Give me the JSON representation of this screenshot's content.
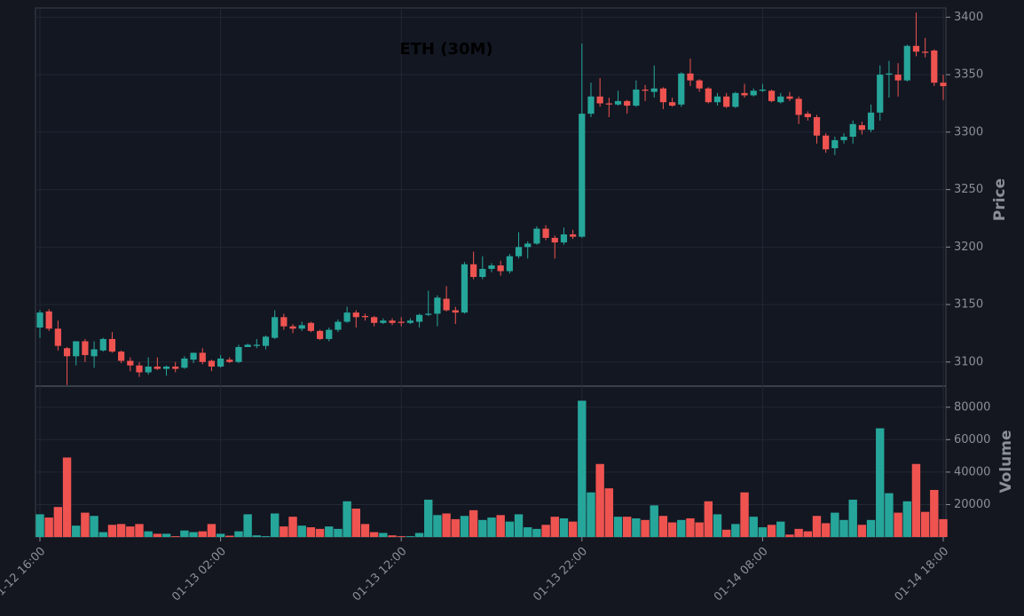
{
  "chart_data": {
    "type": "candlestick",
    "title": "ETH (30M)",
    "ylabel": "Price",
    "x": [
      "01-12 16:00",
      "01-12 16:30",
      "01-12 17:00",
      "01-12 17:30",
      "01-12 18:00",
      "01-12 18:30",
      "01-12 19:00",
      "01-12 19:30",
      "01-12 20:00",
      "01-12 20:30",
      "01-12 21:00",
      "01-12 21:30",
      "01-12 22:00",
      "01-12 22:30",
      "01-12 23:00",
      "01-12 23:30",
      "01-13 00:00",
      "01-13 00:30",
      "01-13 01:00",
      "01-13 01:30",
      "01-13 02:00",
      "01-13 02:30",
      "01-13 03:00",
      "01-13 03:30",
      "01-13 04:00",
      "01-13 04:30",
      "01-13 05:00",
      "01-13 05:30",
      "01-13 06:00",
      "01-13 06:30",
      "01-13 07:00",
      "01-13 07:30",
      "01-13 08:00",
      "01-13 08:30",
      "01-13 09:00",
      "01-13 09:30",
      "01-13 10:00",
      "01-13 10:30",
      "01-13 11:00",
      "01-13 11:30",
      "01-13 12:00",
      "01-13 12:30",
      "01-13 13:00",
      "01-13 13:30",
      "01-13 14:00",
      "01-13 14:30",
      "01-13 15:00",
      "01-13 15:30",
      "01-13 16:00",
      "01-13 16:30",
      "01-13 17:00",
      "01-13 17:30",
      "01-13 18:00",
      "01-13 18:30",
      "01-13 19:00",
      "01-13 19:30",
      "01-13 20:00",
      "01-13 20:30",
      "01-13 21:00",
      "01-13 21:30",
      "01-13 22:00",
      "01-13 22:30",
      "01-13 23:00",
      "01-13 23:30",
      "01-14 00:00",
      "01-14 00:30",
      "01-14 01:00",
      "01-14 01:30",
      "01-14 02:00",
      "01-14 02:30",
      "01-14 03:00",
      "01-14 03:30",
      "01-14 04:00",
      "01-14 04:30",
      "01-14 05:00",
      "01-14 05:30",
      "01-14 06:00",
      "01-14 06:30",
      "01-14 07:00",
      "01-14 07:30",
      "01-14 08:00",
      "01-14 08:30",
      "01-14 09:00",
      "01-14 09:30",
      "01-14 10:00",
      "01-14 10:30",
      "01-14 11:00",
      "01-14 11:30",
      "01-14 12:00",
      "01-14 12:30",
      "01-14 13:00",
      "01-14 13:30",
      "01-14 14:00",
      "01-14 14:30",
      "01-14 15:00",
      "01-14 15:30",
      "01-14 16:00",
      "01-14 16:30",
      "01-14 17:00",
      "01-14 17:30",
      "01-14 18:00"
    ],
    "open": [
      3130,
      3144,
      3129,
      3112,
      3105,
      3118,
      3105,
      3110,
      3120,
      3109,
      3101,
      3097,
      3091,
      3096,
      3094,
      3096,
      3095,
      3102,
      3108,
      3101,
      3096,
      3102,
      3100,
      3113,
      3114,
      3114,
      3121,
      3139,
      3131,
      3129,
      3134,
      3127,
      3120,
      3128,
      3135,
      3143,
      3140,
      3139,
      3134,
      3136,
      3135,
      3134,
      3135,
      3141,
      3142,
      3155,
      3145,
      3143,
      3185,
      3174,
      3181,
      3184,
      3179,
      3192,
      3200,
      3203,
      3216,
      3208,
      3204,
      3211,
      3209,
      3316,
      3331,
      3325,
      3324,
      3327,
      3323,
      3337,
      3335,
      3338,
      3326,
      3324,
      3351,
      3345,
      3338,
      3326,
      3331,
      3322,
      3334,
      3332,
      3336,
      3336,
      3326,
      3331,
      3329,
      3316,
      3313,
      3297,
      3286,
      3293,
      3296,
      3306,
      3302,
      3317,
      3350,
      3350,
      3345,
      3375,
      3370,
      3371,
      3343
    ],
    "high": [
      3145,
      3146,
      3136,
      3113,
      3118,
      3120,
      3118,
      3121,
      3126,
      3110,
      3104,
      3100,
      3104,
      3104,
      3097,
      3100,
      3105,
      3108,
      3112,
      3102,
      3106,
      3104,
      3115,
      3116,
      3120,
      3123,
      3145,
      3142,
      3133,
      3135,
      3135,
      3128,
      3130,
      3137,
      3148,
      3145,
      3142,
      3140,
      3138,
      3138,
      3139,
      3138,
      3142,
      3162,
      3158,
      3166,
      3148,
      3187,
      3196,
      3192,
      3186,
      3188,
      3194,
      3213,
      3205,
      3218,
      3219,
      3210,
      3217,
      3215,
      3377,
      3343,
      3347,
      3330,
      3336,
      3328,
      3345,
      3341,
      3358,
      3339,
      3330,
      3352,
      3364,
      3346,
      3339,
      3334,
      3334,
      3335,
      3342,
      3338,
      3342,
      3337,
      3334,
      3335,
      3331,
      3318,
      3315,
      3299,
      3296,
      3299,
      3310,
      3309,
      3324,
      3358,
      3362,
      3360,
      3376,
      3404,
      3382,
      3372,
      3350
    ],
    "low": [
      3121,
      3127,
      3110,
      3080,
      3097,
      3100,
      3095,
      3109,
      3108,
      3099,
      3092,
      3087,
      3089,
      3093,
      3088,
      3091,
      3094,
      3099,
      3098,
      3092,
      3095,
      3099,
      3099,
      3113,
      3112,
      3111,
      3120,
      3128,
      3125,
      3127,
      3126,
      3119,
      3118,
      3126,
      3134,
      3130,
      3136,
      3131,
      3133,
      3132,
      3131,
      3133,
      3130,
      3140,
      3131,
      3144,
      3133,
      3142,
      3172,
      3172,
      3178,
      3175,
      3177,
      3190,
      3190,
      3202,
      3206,
      3190,
      3202,
      3207,
      3208,
      3313,
      3322,
      3313,
      3323,
      3316,
      3322,
      3327,
      3330,
      3320,
      3322,
      3322,
      3340,
      3335,
      3325,
      3323,
      3321,
      3321,
      3330,
      3331,
      3335,
      3326,
      3325,
      3327,
      3307,
      3310,
      3290,
      3282,
      3280,
      3290,
      3290,
      3298,
      3300,
      3310,
      3330,
      3331,
      3344,
      3366,
      3365,
      3340,
      3328
    ],
    "close": [
      3143,
      3129,
      3114,
      3105,
      3118,
      3106,
      3111,
      3120,
      3109,
      3101,
      3097,
      3091,
      3096,
      3094,
      3096,
      3094,
      3103,
      3108,
      3100,
      3096,
      3103,
      3100,
      3113,
      3115,
      3115,
      3122,
      3139,
      3131,
      3129,
      3132,
      3127,
      3120,
      3128,
      3135,
      3143,
      3139,
      3139,
      3134,
      3136,
      3134,
      3134,
      3136,
      3141,
      3142,
      3156,
      3145,
      3143,
      3185,
      3174,
      3181,
      3184,
      3179,
      3192,
      3200,
      3203,
      3216,
      3208,
      3204,
      3211,
      3209,
      3316,
      3331,
      3325,
      3324,
      3327,
      3323,
      3337,
      3336,
      3338,
      3326,
      3323,
      3351,
      3345,
      3338,
      3326,
      3331,
      3322,
      3334,
      3332,
      3336,
      3337,
      3327,
      3331,
      3329,
      3315,
      3313,
      3297,
      3285,
      3293,
      3296,
      3307,
      3302,
      3317,
      3350,
      3351,
      3345,
      3375,
      3370,
      3369,
      3343,
      3340
    ],
    "ylim": [
      3079,
      3408
    ],
    "yticks": [
      3100,
      3150,
      3200,
      3250,
      3300,
      3350,
      3400
    ],
    "up_color": "#26a69a",
    "down_color": "#ef5350",
    "grid": true,
    "volume": {
      "ylabel": "Volume",
      "ylim": [
        0,
        93000
      ],
      "yticks": [
        20000,
        40000,
        60000,
        80000
      ],
      "values": [
        14000,
        12000,
        18500,
        49000,
        7000,
        15000,
        13000,
        3000,
        7500,
        8000,
        6500,
        8000,
        3500,
        2000,
        2000,
        500,
        4000,
        3000,
        3500,
        8000,
        2000,
        800,
        3500,
        14000,
        1000,
        500,
        14500,
        6500,
        12500,
        7000,
        6000,
        5000,
        6500,
        5000,
        22000,
        17500,
        8000,
        3000,
        2500,
        1000,
        500,
        500,
        2500,
        23000,
        13500,
        14500,
        11000,
        13000,
        16500,
        10500,
        12000,
        13500,
        9500,
        14000,
        6000,
        5000,
        7500,
        12500,
        11500,
        9500,
        84000,
        27500,
        45000,
        30000,
        12500,
        12500,
        11500,
        10500,
        19500,
        13000,
        9000,
        10500,
        11500,
        9000,
        22000,
        14000,
        4500,
        8000,
        27500,
        12500,
        6000,
        7500,
        9500,
        1500,
        5000,
        3500,
        13000,
        8500,
        15000,
        10500,
        23000,
        7500,
        10500,
        67000,
        27000,
        15000,
        22000,
        45000,
        15500,
        29000,
        11000
      ]
    }
  }
}
